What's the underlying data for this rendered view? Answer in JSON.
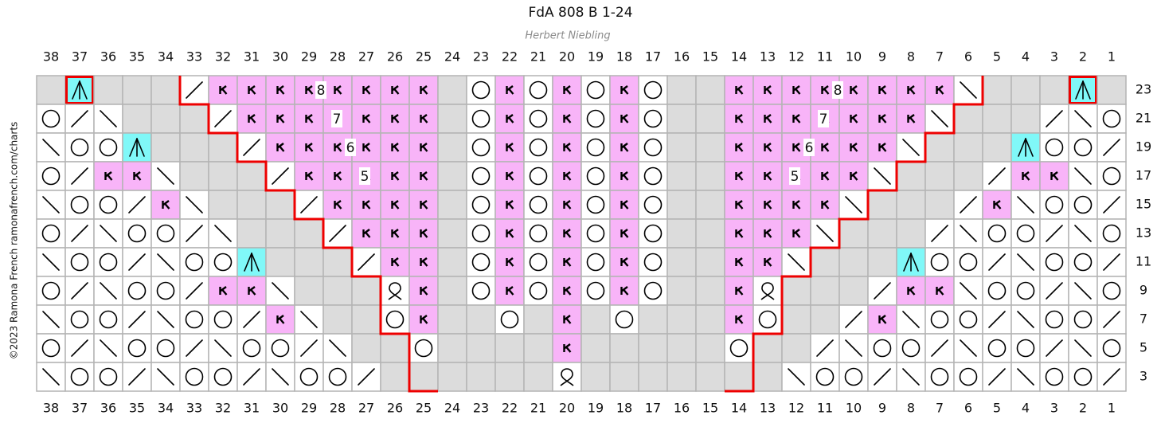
{
  "header": {
    "title": "FdA 808 B 1-24",
    "subtitle": "Herbert Niebling"
  },
  "columns": [
    38,
    37,
    36,
    35,
    34,
    33,
    32,
    31,
    30,
    29,
    28,
    27,
    26,
    25,
    24,
    23,
    22,
    21,
    20,
    19,
    18,
    17,
    16,
    15,
    14,
    13,
    12,
    11,
    10,
    9,
    8,
    7,
    6,
    5,
    4,
    3,
    2,
    1
  ],
  "rows": [
    23,
    21,
    19,
    17,
    15,
    13,
    11,
    9,
    7,
    5,
    3
  ],
  "stitch_counts": [
    8,
    7,
    6,
    5
  ],
  "credit": "©2023 Ramona French   ramonafrench.com/charts"
}
